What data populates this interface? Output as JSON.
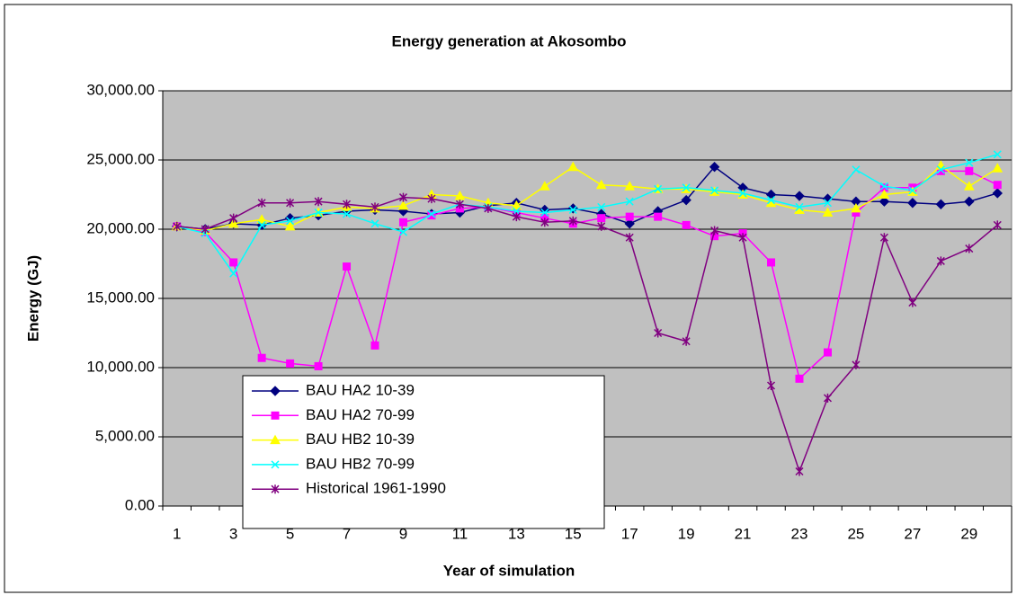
{
  "chart_data": {
    "type": "line",
    "title": "Energy generation at Akosombo",
    "x_label": "Year of simulation",
    "y_label": "Energy (GJ)",
    "categories": [
      1,
      null,
      3,
      null,
      5,
      null,
      7,
      null,
      9,
      null,
      11,
      null,
      13,
      null,
      15,
      null,
      17,
      null,
      19,
      null,
      21,
      null,
      23,
      null,
      25,
      null,
      27,
      null,
      29,
      null
    ],
    "ylim": [
      0,
      30000
    ],
    "yticks": [
      {
        "value": 0,
        "label": "0.00"
      },
      {
        "value": 5000,
        "label": "5,000.00"
      },
      {
        "value": 10000,
        "label": "10,000.00"
      },
      {
        "value": 15000,
        "label": "15,000.00"
      },
      {
        "value": 20000,
        "label": "20,000.00"
      },
      {
        "value": 25000,
        "label": "25,000.00"
      },
      {
        "value": 30000,
        "label": "30,000.00"
      }
    ],
    "grid": true,
    "series": [
      {
        "name": "BAU HA2 10-39",
        "color": "#000080",
        "marker": "diamond",
        "values": [
          20200,
          20000,
          20400,
          20300,
          20800,
          21000,
          21300,
          21400,
          21300,
          21100,
          21200,
          21700,
          21900,
          21400,
          21500,
          21100,
          20400,
          21300,
          22100,
          24500,
          23000,
          22500,
          22400,
          22200,
          22000,
          22000,
          21900,
          21800,
          22000,
          22600
        ]
      },
      {
        "name": "BAU HA2 70-99",
        "color": "#ff00ff",
        "marker": "square",
        "values": [
          20200,
          19800,
          17600,
          10700,
          10300,
          10100,
          17300,
          11600,
          20500,
          21000,
          21500,
          21600,
          21200,
          20800,
          20400,
          20800,
          20900,
          20900,
          20300,
          19500,
          19700,
          17600,
          9200,
          11100,
          21200,
          23000,
          23000,
          24200,
          24200,
          23200
        ]
      },
      {
        "name": "BAU HB2 10-39",
        "color": "#ffff00",
        "marker": "triangle",
        "values": [
          20200,
          19900,
          20400,
          20700,
          20200,
          21200,
          21600,
          21500,
          21700,
          22500,
          22400,
          21900,
          21700,
          23100,
          24500,
          23200,
          23100,
          22900,
          22900,
          22700,
          22500,
          21900,
          21400,
          21200,
          21500,
          22500,
          22700,
          24600,
          23100,
          24400
        ]
      },
      {
        "name": "BAU HB2 70-99",
        "color": "#00ffff",
        "marker": "x",
        "values": [
          20200,
          19700,
          16800,
          20300,
          20600,
          21200,
          21100,
          20400,
          19800,
          21100,
          21800,
          21600,
          21300,
          21200,
          21400,
          21600,
          22000,
          22900,
          23000,
          22800,
          22600,
          22100,
          21600,
          21900,
          24300,
          23100,
          22800,
          24300,
          24800,
          25400
        ]
      },
      {
        "name": "Historical 1961-1990",
        "color": "#800080",
        "marker": "star",
        "values": [
          20200,
          20000,
          20800,
          21900,
          21900,
          22000,
          21800,
          21600,
          22300,
          22200,
          21800,
          21500,
          20900,
          20500,
          20600,
          20200,
          19400,
          12500,
          11900,
          19900,
          19400,
          8700,
          2500,
          7800,
          10200,
          19400,
          14700,
          17700,
          18600,
          20300
        ]
      }
    ]
  }
}
